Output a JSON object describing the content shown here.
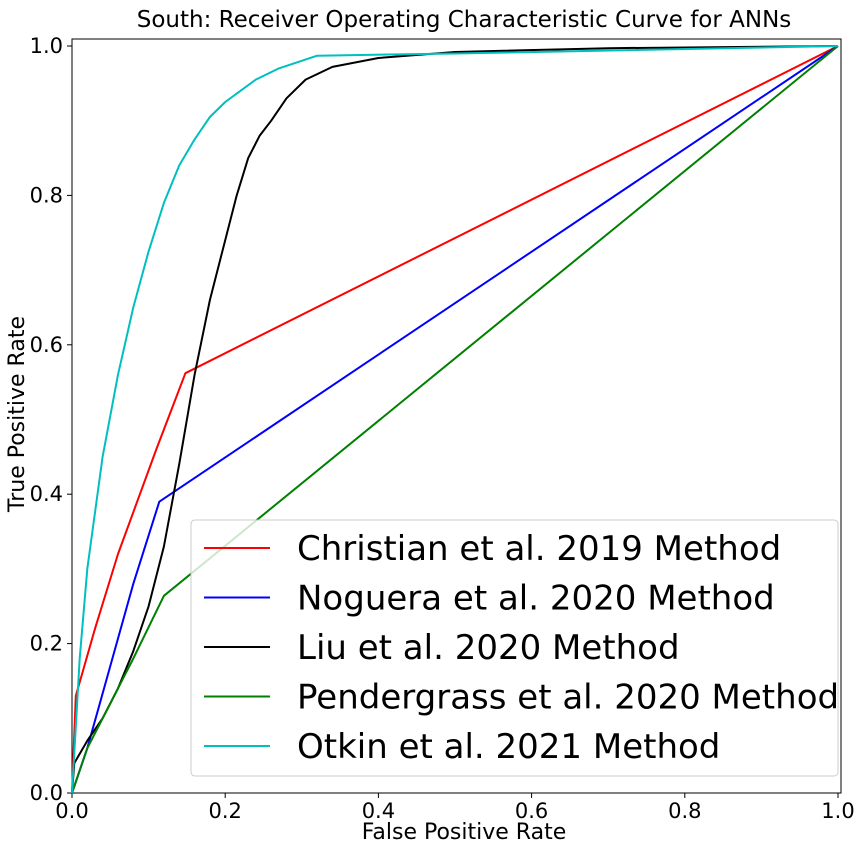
{
  "chart_data": {
    "type": "line",
    "title": "South: Receiver Operating Characteristic Curve for ANNs",
    "xlabel": "False Positive Rate",
    "ylabel": "True Positive Rate",
    "xlim": [
      0.0,
      1.0
    ],
    "ylim": [
      0.0,
      1.0
    ],
    "xticks": [
      "0.0",
      "0.2",
      "0.4",
      "0.6",
      "0.8",
      "1.0"
    ],
    "yticks": [
      "0.0",
      "0.2",
      "0.4",
      "0.6",
      "0.8",
      "1.0"
    ],
    "grid": false,
    "legend_position": "lower-right",
    "series": [
      {
        "name": "Christian et al. 2019 Method",
        "color": "#ff0000",
        "x": [
          0.0,
          0.005,
          0.03,
          0.06,
          0.11,
          0.148,
          1.0
        ],
        "y": [
          0.0,
          0.13,
          0.22,
          0.32,
          0.46,
          0.562,
          1.0
        ]
      },
      {
        "name": "Noguera et al. 2020 Method",
        "color": "#0000ff",
        "x": [
          0.0,
          0.02,
          0.05,
          0.08,
          0.114,
          1.0
        ],
        "y": [
          0.0,
          0.06,
          0.17,
          0.28,
          0.39,
          1.0
        ]
      },
      {
        "name": "Liu et al. 2020 Method",
        "color": "#000000",
        "x": [
          0.0,
          0.003,
          0.02,
          0.04,
          0.06,
          0.08,
          0.1,
          0.12,
          0.14,
          0.16,
          0.18,
          0.2,
          0.215,
          0.23,
          0.245,
          0.26,
          0.28,
          0.305,
          0.34,
          0.4,
          0.5,
          0.7,
          1.0
        ],
        "y": [
          0.0,
          0.04,
          0.07,
          0.1,
          0.14,
          0.19,
          0.25,
          0.33,
          0.44,
          0.56,
          0.66,
          0.74,
          0.8,
          0.85,
          0.88,
          0.9,
          0.93,
          0.955,
          0.972,
          0.984,
          0.992,
          0.997,
          1.0
        ]
      },
      {
        "name": "Pendergrass et al. 2020 Method",
        "color": "#008000",
        "x": [
          0.0,
          0.02,
          0.05,
          0.08,
          0.12,
          1.0
        ],
        "y": [
          0.0,
          0.06,
          0.12,
          0.18,
          0.264,
          1.0
        ]
      },
      {
        "name": "Otkin et al. 2021 Method",
        "color": "#00bfbf",
        "x": [
          0.0,
          0.01,
          0.02,
          0.04,
          0.06,
          0.08,
          0.1,
          0.12,
          0.14,
          0.16,
          0.18,
          0.2,
          0.22,
          0.24,
          0.27,
          0.32,
          0.5,
          1.0
        ],
        "y": [
          0.0,
          0.18,
          0.3,
          0.45,
          0.56,
          0.65,
          0.725,
          0.79,
          0.84,
          0.875,
          0.905,
          0.925,
          0.94,
          0.955,
          0.97,
          0.987,
          0.99,
          1.0
        ]
      }
    ]
  }
}
